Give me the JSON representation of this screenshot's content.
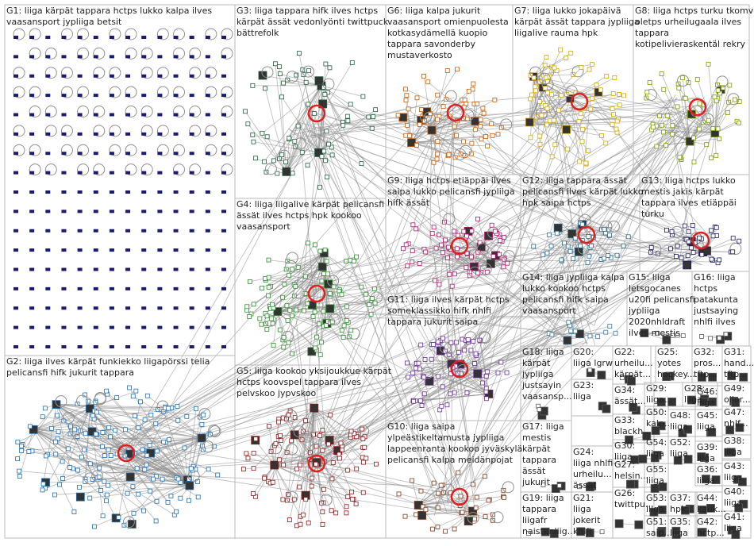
{
  "graph": {
    "groups": [
      {
        "id": "G1",
        "lines": [
          "G1: liiga kärpät tappara hctps lukko kalpa ilves",
          "vaasansport jypliiga betsit"
        ],
        "color": "#1a1a6e",
        "density": 260
      },
      {
        "id": "G2",
        "lines": [
          "G2: liiga ilves kärpät funkiekko liigapörssi telia",
          "pelicansfi hifk jukurit tappara"
        ],
        "color": "#1f6fb5",
        "density": 170
      },
      {
        "id": "G3",
        "lines": [
          "G3: liiga tappara hifk ilves hctps",
          "kärpät ässät vedonlyönti twittpuck",
          "bättrefolk"
        ],
        "color": "#1e5e3a",
        "density": 70
      },
      {
        "id": "G4",
        "lines": [
          "G4: liiga liigalive kärpät pelicansfi",
          "ässät ilves hctps hpk kookoo",
          "vaasansport"
        ],
        "color": "#2e8b2e",
        "density": 110
      },
      {
        "id": "G5",
        "lines": [
          "G5: liiga kookoo yksijoukkue kärpät",
          "hctps koovspel tappara ilves",
          "pelvskoo jypvskoo"
        ],
        "color": "#8b1a1a",
        "density": 110
      },
      {
        "id": "G6",
        "lines": [
          "G6: liiga kalpa jukurit",
          "vaasansport omienpuolesta",
          "kotkasydämellä kuopio",
          "tappara savonderby",
          "mustaverkosto"
        ],
        "color": "#c85a00",
        "density": 70
      },
      {
        "id": "G7",
        "lines": [
          "G7: liiga lukko jokapäivä",
          "kärpät ässät tappara jypliiga",
          "liigalive rauma hpk"
        ],
        "color": "#d4a800",
        "density": 80
      },
      {
        "id": "G8",
        "lines": [
          "G8: liiga hctps turku tkomv",
          "oletps urheilugaala ilves",
          "tappara",
          "kotipelivieraskentäl rekry"
        ],
        "color": "#7a9c00",
        "density": 60
      },
      {
        "id": "G9",
        "lines": [
          "G9: liiga hctps etiäppäi ilves",
          "saipa lukko pelicansfi jypliiga",
          "hifk ässät"
        ],
        "color": "#b0156e",
        "density": 70
      },
      {
        "id": "G10",
        "lines": [
          "G10: liiga saipa",
          "ylpeästikeltamusta jypliiga",
          "lappeenranta kookoo jyväskylä",
          "pelicansfi kalpa meidänpojat"
        ],
        "color": "#7a3a1a",
        "density": 40
      },
      {
        "id": "G11",
        "lines": [
          "G11: liiga ilves kärpät hctps",
          "someklassikko hifk nhlfi",
          "tappara jukurit saipa"
        ],
        "color": "#6a2a9a",
        "density": 70
      },
      {
        "id": "G12",
        "lines": [
          "G12: liiga tappara ässät",
          "pelicansfi ilves kärpät lukko",
          "hpk saipa hctps"
        ],
        "color": "#2a6a8a",
        "density": 40
      },
      {
        "id": "G13",
        "lines": [
          "G13: liiga hctps lukko",
          "mestis jakis kärpät",
          "tappara ilves etiäppäi",
          "turku"
        ],
        "color": "#1a1a5a",
        "density": 40
      },
      {
        "id": "G14",
        "lines": [
          "G14: liiga jypliiga kalpa",
          "lukko kookoo hctps",
          "pelicansfi hifk saipa",
          "vaasansport"
        ],
        "color": "#3a7aa0",
        "density": 14
      },
      {
        "id": "G15",
        "lines": [
          "G15: liiga",
          "letsgocanes",
          "u20fi pelicansfi",
          "jypliiga",
          "2020nhldraft",
          "ilves mestis"
        ],
        "color": "#5a5a5a",
        "density": 6
      },
      {
        "id": "G16",
        "lines": [
          "G16: liiga",
          "hctps",
          "patakunta",
          "justsaying",
          "nhlfi ilves"
        ],
        "color": "#5a5a5a",
        "density": 6
      },
      {
        "id": "G17",
        "lines": [
          "G17: liiga",
          "mestis",
          "kärpät",
          "tappara",
          "ässät",
          "jukurit"
        ],
        "color": "#5a5a5a",
        "density": 4
      },
      {
        "id": "G18",
        "lines": [
          "G18: liiga",
          "kärpät",
          "jypliiga",
          "justsayin",
          "vaasansp..."
        ],
        "color": "#5a5a5a",
        "density": 4
      },
      {
        "id": "G19",
        "lines": [
          "G19: liiga",
          "tappara",
          "liigafr",
          "naistenliig..."
        ],
        "color": "#5a5a5a",
        "density": 3
      },
      {
        "id": "G20",
        "lines": [
          "G20:",
          "liiga lgrw"
        ],
        "color": "#5a5a5a",
        "density": 3
      },
      {
        "id": "G21",
        "lines": [
          "G21:",
          "liiga",
          "jokerit",
          "khlfi"
        ],
        "color": "#5a5a5a",
        "density": 3
      },
      {
        "id": "G22",
        "lines": [
          "G22:",
          "urheilu...",
          "kärpät..."
        ],
        "color": "#5a5a5a",
        "density": 3
      },
      {
        "id": "G23",
        "lines": [
          "G23:",
          "liiga"
        ],
        "color": "#5a5a5a",
        "density": 2
      },
      {
        "id": "G24",
        "lines": [
          "G24:",
          "liiga nhlfi",
          "urheilu...",
          "ässät"
        ],
        "color": "#5a5a5a",
        "density": 3
      },
      {
        "id": "G25",
        "lines": [
          "G25:",
          "yotes",
          "hockey..."
        ],
        "color": "#5a5a5a",
        "density": 2
      },
      {
        "id": "G26",
        "lines": [
          "G26:",
          "twittpu..."
        ],
        "color": "#5a5a5a",
        "density": 2
      },
      {
        "id": "G27",
        "lines": [
          "G27:",
          "helsin..."
        ],
        "color": "#5a5a5a",
        "density": 2
      },
      {
        "id": "G28",
        "lines": [
          "G28:",
          "liiga"
        ],
        "color": "#5a5a5a",
        "density": 2
      },
      {
        "id": "G29",
        "lines": [
          "G29:",
          "liiga..."
        ],
        "color": "#5a5a5a",
        "density": 2
      },
      {
        "id": "G30",
        "lines": [
          "G30:",
          "liiga..."
        ],
        "color": "#5a5a5a",
        "density": 2
      },
      {
        "id": "G31",
        "lines": [
          "G31:",
          "hand...",
          "tftp..."
        ],
        "color": "#5a5a5a",
        "density": 2
      },
      {
        "id": "G32",
        "lines": [
          "G32:",
          "pros...",
          "tftp..."
        ],
        "color": "#5a5a5a",
        "density": 2
      },
      {
        "id": "G33",
        "lines": [
          "G33:",
          "blackh..."
        ],
        "color": "#5a5a5a",
        "density": 2
      },
      {
        "id": "G34",
        "lines": [
          "G34:",
          "ässät..."
        ],
        "color": "#5a5a5a",
        "density": 2
      },
      {
        "id": "G35",
        "lines": [
          "G35:",
          "liiga"
        ],
        "color": "#5a5a5a",
        "density": 2
      },
      {
        "id": "G36",
        "lines": [
          "G36:",
          "liiga"
        ],
        "color": "#5a5a5a",
        "density": 2
      },
      {
        "id": "G37",
        "lines": [
          "G37:",
          "hpk..."
        ],
        "color": "#5a5a5a",
        "density": 2
      },
      {
        "id": "G38",
        "lines": [
          "G38:",
          "liiga"
        ],
        "color": "#5a5a5a",
        "density": 2
      },
      {
        "id": "G39",
        "lines": [
          "G39:",
          "liiga"
        ],
        "color": "#5a5a5a",
        "density": 2
      },
      {
        "id": "G40",
        "lines": [
          "G40:",
          "liiga"
        ],
        "color": "#5a5a5a",
        "density": 2
      },
      {
        "id": "G41",
        "lines": [
          "G41:",
          "liiga"
        ],
        "color": "#5a5a5a",
        "density": 2
      },
      {
        "id": "G42",
        "lines": [
          "G42:",
          "hctp..."
        ],
        "color": "#5a5a5a",
        "density": 2
      },
      {
        "id": "G43",
        "lines": [
          "G43:",
          "liiga"
        ],
        "color": "#5a5a5a",
        "density": 2
      },
      {
        "id": "G44",
        "lines": [
          "G44:",
          "kauk..."
        ],
        "color": "#5a5a5a",
        "density": 2
      },
      {
        "id": "G45",
        "lines": [
          "G45:",
          "liiga"
        ],
        "color": "#5a5a5a",
        "density": 2
      },
      {
        "id": "G46",
        "lines": [
          "G46:",
          "liiga"
        ],
        "color": "#5a5a5a",
        "density": 2
      },
      {
        "id": "G47",
        "lines": [
          "G47:",
          "nhlf..."
        ],
        "color": "#5a5a5a",
        "density": 2
      },
      {
        "id": "G48",
        "lines": [
          "G48:",
          "liiga"
        ],
        "color": "#5a5a5a",
        "density": 2
      },
      {
        "id": "G49",
        "lines": [
          "G49:",
          "oiler..."
        ],
        "color": "#5a5a5a",
        "density": 2
      },
      {
        "id": "G50",
        "lines": [
          "G50:",
          "kalp..."
        ],
        "color": "#5a5a5a",
        "density": 2
      },
      {
        "id": "G51",
        "lines": [
          "G51:",
          "saip..."
        ],
        "color": "#5a5a5a",
        "density": 2
      },
      {
        "id": "G52",
        "lines": [
          "G52:",
          "liiga"
        ],
        "color": "#5a5a5a",
        "density": 2
      },
      {
        "id": "G53",
        "lines": [
          "G53:",
          "liiga"
        ],
        "color": "#5a5a5a",
        "density": 2
      },
      {
        "id": "G54",
        "lines": [
          "G54:",
          "liiga"
        ],
        "color": "#5a5a5a",
        "density": 2
      },
      {
        "id": "G55",
        "lines": [
          "G55:",
          "liiga"
        ],
        "color": "#5a5a5a",
        "density": 2
      }
    ]
  }
}
